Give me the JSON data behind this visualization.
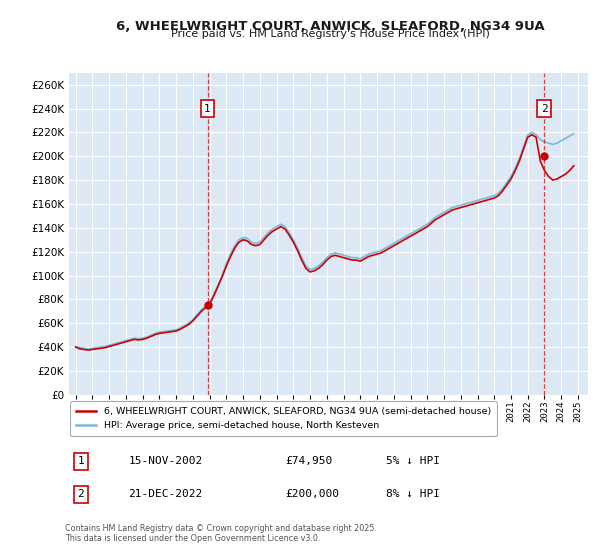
{
  "title": "6, WHEELWRIGHT COURT, ANWICK, SLEAFORD, NG34 9UA",
  "subtitle": "Price paid vs. HM Land Registry's House Price Index (HPI)",
  "bg_color": "#ffffff",
  "plot_bg_color": "#dce9f5",
  "grid_color": "#ffffff",
  "hpi_color": "#7ab8d9",
  "price_color": "#cc0000",
  "marker_color": "#cc0000",
  "vline_color": "#cc0000",
  "ylim": [
    0,
    270000
  ],
  "yticks": [
    0,
    20000,
    40000,
    60000,
    80000,
    100000,
    120000,
    140000,
    160000,
    180000,
    200000,
    220000,
    240000,
    260000
  ],
  "xlim_start": 1994.6,
  "xlim_end": 2025.6,
  "purchase1_x": 2002.876,
  "purchase1_y": 74950,
  "purchase2_x": 2022.972,
  "purchase2_y": 200000,
  "legend_label1": "6, WHEELWRIGHT COURT, ANWICK, SLEAFORD, NG34 9UA (semi-detached house)",
  "legend_label2": "HPI: Average price, semi-detached house, North Kesteven",
  "table_row1": [
    "1",
    "15-NOV-2002",
    "£74,950",
    "5% ↓ HPI"
  ],
  "table_row2": [
    "2",
    "21-DEC-2022",
    "£200,000",
    "8% ↓ HPI"
  ],
  "footer": "Contains HM Land Registry data © Crown copyright and database right 2025.\nThis data is licensed under the Open Government Licence v3.0.",
  "hpi_data_x": [
    1995.0,
    1995.25,
    1995.5,
    1995.75,
    1996.0,
    1996.25,
    1996.5,
    1996.75,
    1997.0,
    1997.25,
    1997.5,
    1997.75,
    1998.0,
    1998.25,
    1998.5,
    1998.75,
    1999.0,
    1999.25,
    1999.5,
    1999.75,
    2000.0,
    2000.25,
    2000.5,
    2000.75,
    2001.0,
    2001.25,
    2001.5,
    2001.75,
    2002.0,
    2002.25,
    2002.5,
    2002.75,
    2003.0,
    2003.25,
    2003.5,
    2003.75,
    2004.0,
    2004.25,
    2004.5,
    2004.75,
    2005.0,
    2005.25,
    2005.5,
    2005.75,
    2006.0,
    2006.25,
    2006.5,
    2006.75,
    2007.0,
    2007.25,
    2007.5,
    2007.75,
    2008.0,
    2008.25,
    2008.5,
    2008.75,
    2009.0,
    2009.25,
    2009.5,
    2009.75,
    2010.0,
    2010.25,
    2010.5,
    2010.75,
    2011.0,
    2011.25,
    2011.5,
    2011.75,
    2012.0,
    2012.25,
    2012.5,
    2012.75,
    2013.0,
    2013.25,
    2013.5,
    2013.75,
    2014.0,
    2014.25,
    2014.5,
    2014.75,
    2015.0,
    2015.25,
    2015.5,
    2015.75,
    2016.0,
    2016.25,
    2016.5,
    2016.75,
    2017.0,
    2017.25,
    2017.5,
    2017.75,
    2018.0,
    2018.25,
    2018.5,
    2018.75,
    2019.0,
    2019.25,
    2019.5,
    2019.75,
    2020.0,
    2020.25,
    2020.5,
    2020.75,
    2021.0,
    2021.25,
    2021.5,
    2021.75,
    2022.0,
    2022.25,
    2022.5,
    2022.75,
    2023.0,
    2023.25,
    2023.5,
    2023.75,
    2024.0,
    2024.25,
    2024.5,
    2024.75
  ],
  "hpi_data_y": [
    40500,
    39500,
    39000,
    38500,
    39000,
    39500,
    40000,
    40500,
    41500,
    42500,
    43500,
    44500,
    45500,
    46500,
    47500,
    47000,
    47500,
    48500,
    50000,
    51500,
    52500,
    53000,
    53500,
    54000,
    54500,
    56000,
    58000,
    60000,
    63000,
    67000,
    71000,
    74000,
    77000,
    84000,
    92000,
    100000,
    110000,
    118000,
    125000,
    130000,
    132000,
    131000,
    128000,
    127000,
    128000,
    132000,
    136000,
    139000,
    141000,
    143000,
    141000,
    136000,
    130000,
    123000,
    115000,
    108000,
    105000,
    106000,
    108000,
    111000,
    115000,
    118000,
    119000,
    118000,
    117000,
    116000,
    115000,
    115000,
    114000,
    116000,
    118000,
    119000,
    120000,
    121000,
    123000,
    125000,
    127000,
    129000,
    131000,
    133000,
    135000,
    137000,
    139000,
    141000,
    143000,
    146000,
    149000,
    151000,
    153000,
    155000,
    157000,
    158000,
    159000,
    160000,
    161000,
    162000,
    163000,
    164000,
    165000,
    166000,
    167000,
    169000,
    173000,
    178000,
    183000,
    190000,
    198000,
    208000,
    218000,
    220000,
    218000,
    214000,
    212000,
    211000,
    210000,
    211000,
    213000,
    215000,
    217000,
    219000
  ],
  "price_data_x": [
    1995.0,
    1995.25,
    1995.5,
    1995.75,
    1996.0,
    1996.25,
    1996.5,
    1996.75,
    1997.0,
    1997.25,
    1997.5,
    1997.75,
    1998.0,
    1998.25,
    1998.5,
    1998.75,
    1999.0,
    1999.25,
    1999.5,
    1999.75,
    2000.0,
    2000.25,
    2000.5,
    2000.75,
    2001.0,
    2001.25,
    2001.5,
    2001.75,
    2002.0,
    2002.25,
    2002.5,
    2002.75,
    2003.0,
    2003.25,
    2003.5,
    2003.75,
    2004.0,
    2004.25,
    2004.5,
    2004.75,
    2005.0,
    2005.25,
    2005.5,
    2005.75,
    2006.0,
    2006.25,
    2006.5,
    2006.75,
    2007.0,
    2007.25,
    2007.5,
    2007.75,
    2008.0,
    2008.25,
    2008.5,
    2008.75,
    2009.0,
    2009.25,
    2009.5,
    2009.75,
    2010.0,
    2010.25,
    2010.5,
    2010.75,
    2011.0,
    2011.25,
    2011.5,
    2011.75,
    2012.0,
    2012.25,
    2012.5,
    2012.75,
    2013.0,
    2013.25,
    2013.5,
    2013.75,
    2014.0,
    2014.25,
    2014.5,
    2014.75,
    2015.0,
    2015.25,
    2015.5,
    2015.75,
    2016.0,
    2016.25,
    2016.5,
    2016.75,
    2017.0,
    2017.25,
    2017.5,
    2017.75,
    2018.0,
    2018.25,
    2018.5,
    2018.75,
    2019.0,
    2019.25,
    2019.5,
    2019.75,
    2020.0,
    2020.25,
    2020.5,
    2020.75,
    2021.0,
    2021.25,
    2021.5,
    2021.75,
    2022.0,
    2022.25,
    2022.5,
    2022.75,
    2023.0,
    2023.25,
    2023.5,
    2023.75,
    2024.0,
    2024.25,
    2024.5,
    2024.75
  ],
  "price_data_y": [
    40000,
    38500,
    38000,
    37500,
    38000,
    38500,
    39000,
    39500,
    40500,
    41500,
    42500,
    43500,
    44500,
    45500,
    46500,
    46000,
    46500,
    47500,
    49000,
    50500,
    51500,
    52000,
    52500,
    53000,
    53500,
    55000,
    57000,
    59000,
    62000,
    66000,
    70000,
    73000,
    76000,
    83000,
    91000,
    99000,
    108000,
    116000,
    123000,
    128000,
    130000,
    129000,
    126000,
    125000,
    126000,
    130000,
    134000,
    137000,
    139000,
    141000,
    139000,
    134000,
    128000,
    121000,
    113000,
    106000,
    103000,
    104000,
    106000,
    109000,
    113000,
    116000,
    117000,
    116000,
    115000,
    114000,
    113000,
    113000,
    112000,
    114000,
    116000,
    117000,
    118000,
    119000,
    121000,
    123000,
    125000,
    127000,
    129000,
    131000,
    133000,
    135000,
    137000,
    139000,
    141000,
    144000,
    147000,
    149000,
    151000,
    153000,
    155000,
    156000,
    157000,
    158000,
    159000,
    160000,
    161000,
    162000,
    163000,
    164000,
    165000,
    167000,
    171000,
    176000,
    181000,
    188000,
    196000,
    206000,
    216000,
    218000,
    216000,
    196000,
    188000,
    183000,
    180000,
    181000,
    183000,
    185000,
    188000,
    192000
  ]
}
